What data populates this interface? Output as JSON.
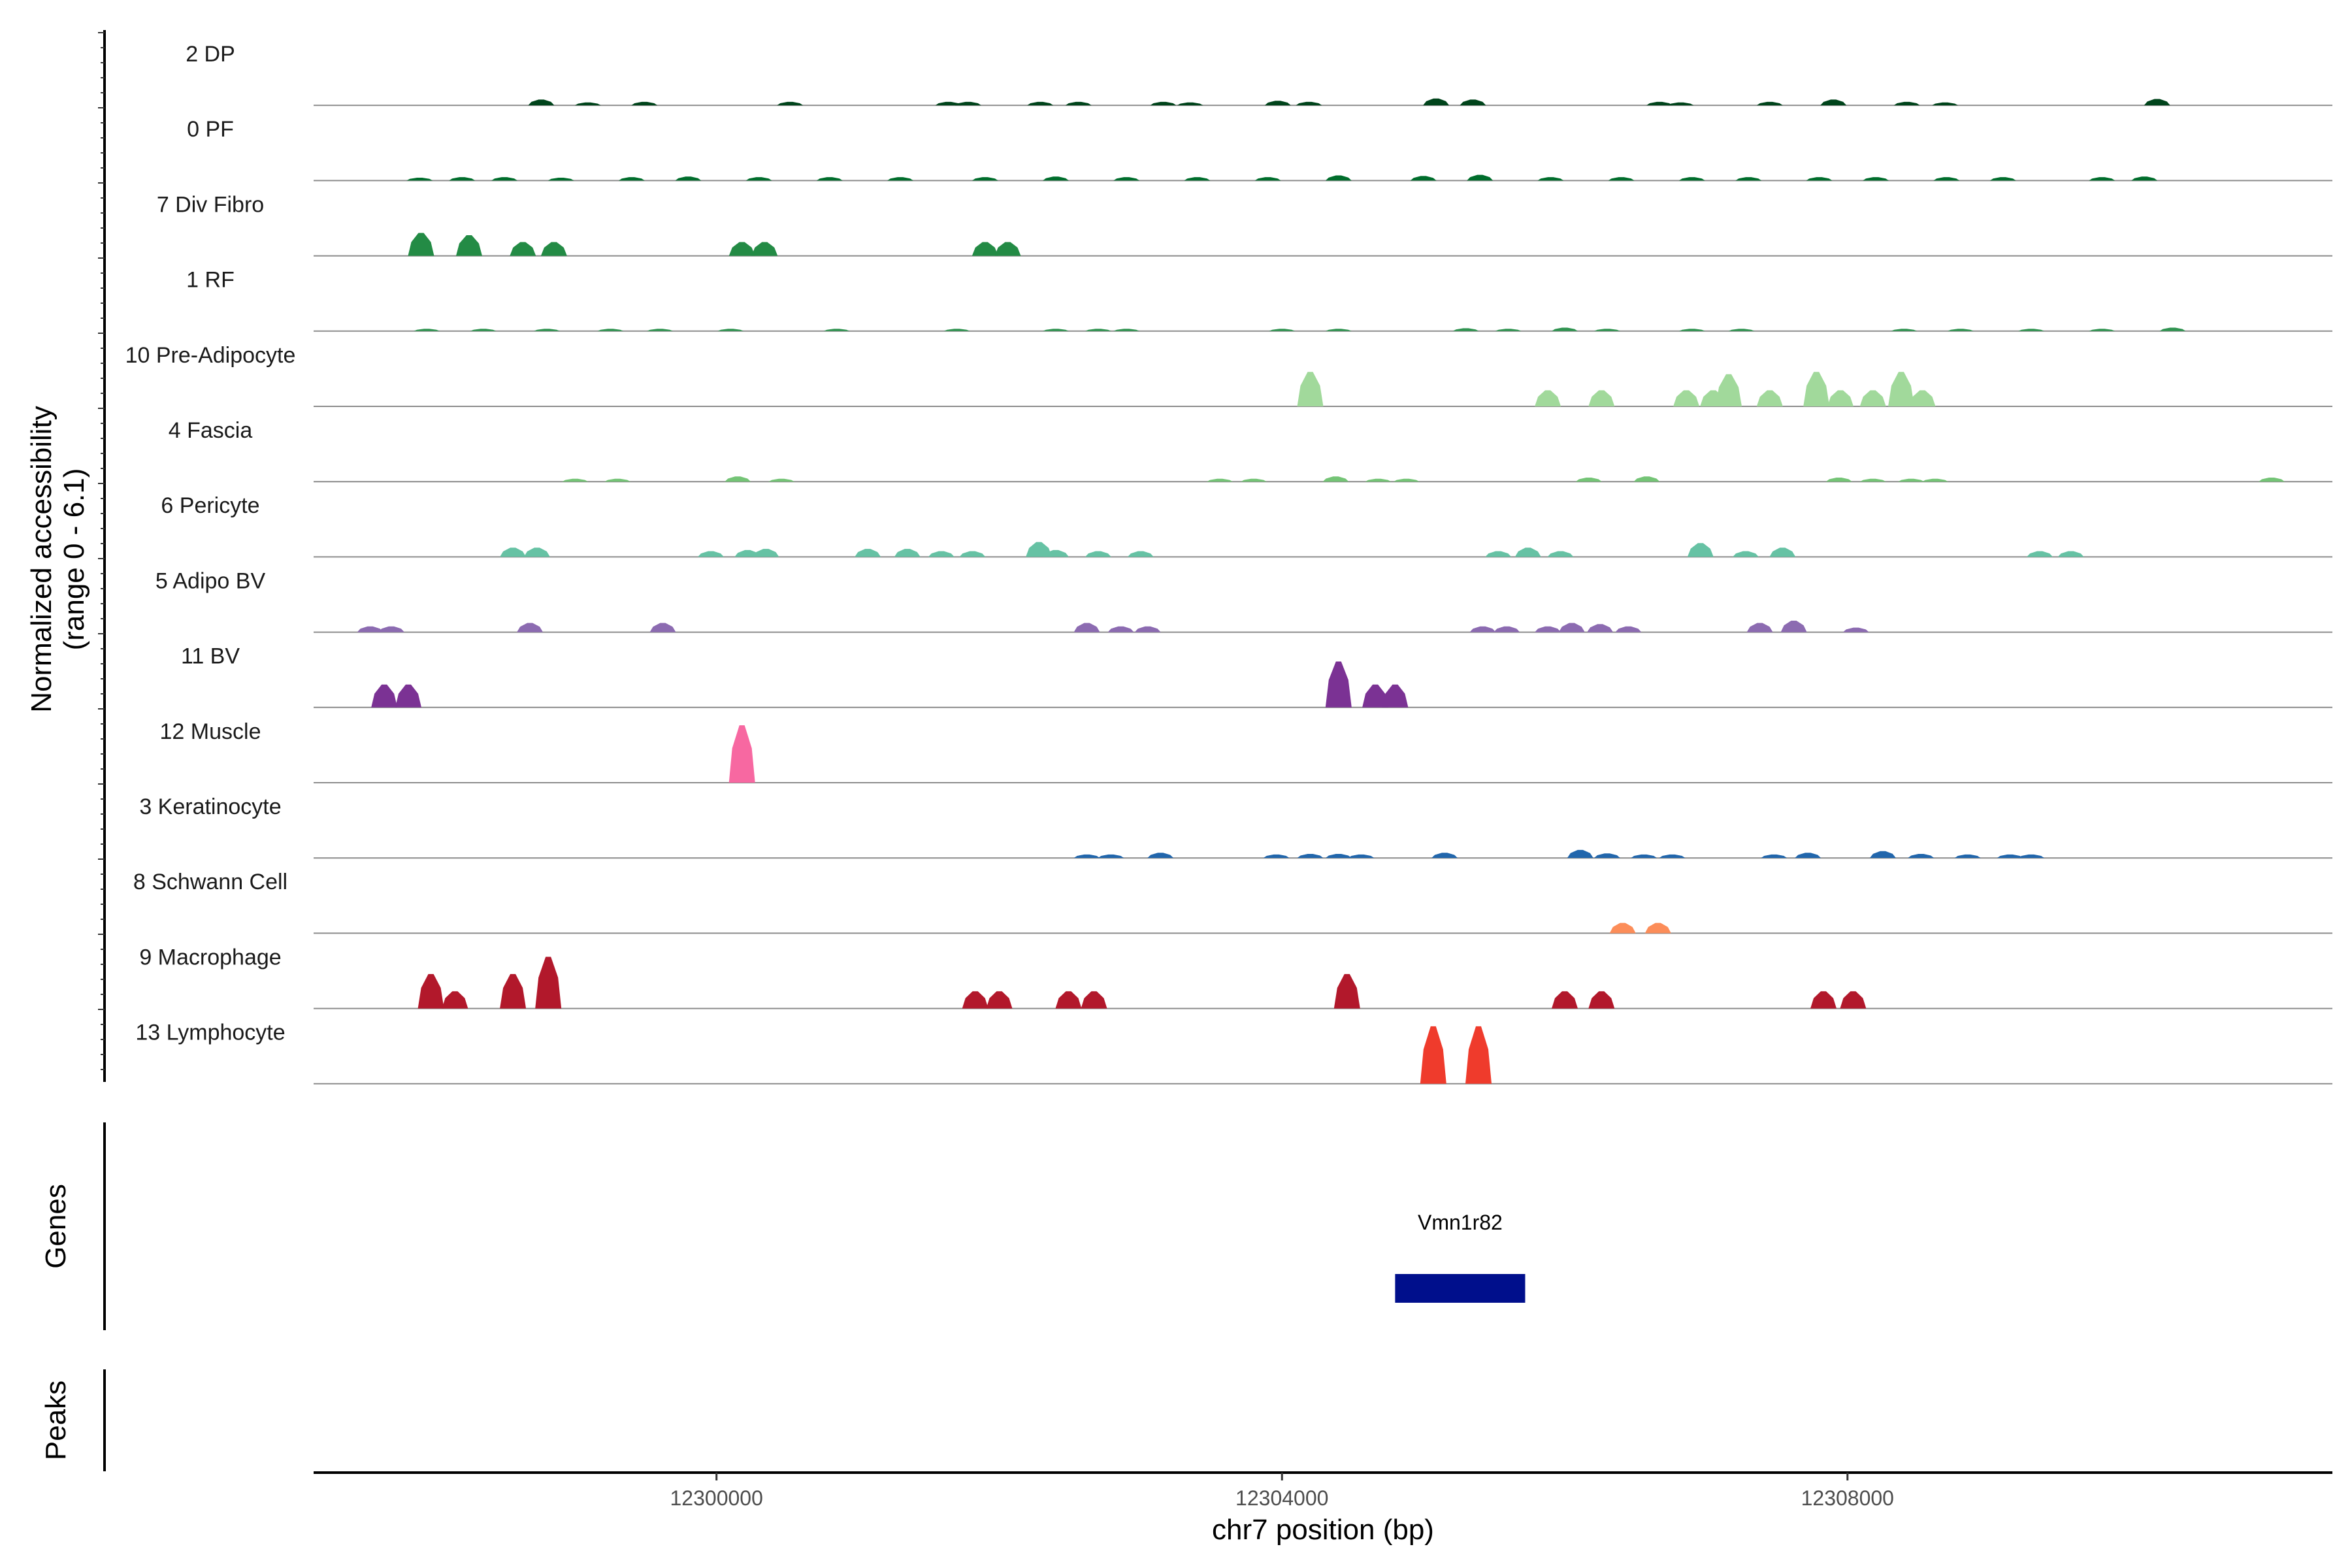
{
  "chart_data": {
    "type": "area",
    "xlabel": "chr7 position (bp)",
    "ylabel_line1": "Normalized accessibility",
    "ylabel_line2": "(range 0 - 6.1)",
    "xlim": [
      12297150,
      12311430
    ],
    "ylim": [
      0,
      6.1
    ],
    "x_ticks": [
      {
        "value": 12300000,
        "label": "12300000"
      },
      {
        "value": 12304000,
        "label": "12304000"
      },
      {
        "value": 12308000,
        "label": "12308000"
      }
    ],
    "tracks": [
      {
        "name": "2 DP",
        "color": "#00441b",
        "peaks": [
          [
            12298760,
            0.5
          ],
          [
            12299090,
            0.25
          ],
          [
            12299490,
            0.3
          ],
          [
            12300520,
            0.3
          ],
          [
            12301640,
            0.3
          ],
          [
            12301780,
            0.3
          ],
          [
            12302290,
            0.3
          ],
          [
            12302560,
            0.3
          ],
          [
            12303160,
            0.3
          ],
          [
            12303350,
            0.25
          ],
          [
            12303970,
            0.4
          ],
          [
            12304190,
            0.3
          ],
          [
            12305090,
            0.6
          ],
          [
            12305350,
            0.5
          ],
          [
            12306670,
            0.3
          ],
          [
            12306820,
            0.25
          ],
          [
            12307450,
            0.3
          ],
          [
            12307900,
            0.5
          ],
          [
            12308420,
            0.3
          ],
          [
            12308690,
            0.25
          ],
          [
            12310190,
            0.55
          ]
        ]
      },
      {
        "name": "0 PF",
        "color": "#006d2c",
        "peaks": [
          [
            12297900,
            0.25
          ],
          [
            12298200,
            0.3
          ],
          [
            12298500,
            0.3
          ],
          [
            12298900,
            0.25
          ],
          [
            12299400,
            0.3
          ],
          [
            12299800,
            0.35
          ],
          [
            12300300,
            0.3
          ],
          [
            12300800,
            0.3
          ],
          [
            12301300,
            0.3
          ],
          [
            12301900,
            0.3
          ],
          [
            12302400,
            0.35
          ],
          [
            12302900,
            0.3
          ],
          [
            12303400,
            0.3
          ],
          [
            12303900,
            0.3
          ],
          [
            12304400,
            0.45
          ],
          [
            12305000,
            0.4
          ],
          [
            12305400,
            0.5
          ],
          [
            12305900,
            0.3
          ],
          [
            12306400,
            0.3
          ],
          [
            12306900,
            0.3
          ],
          [
            12307300,
            0.3
          ],
          [
            12307800,
            0.3
          ],
          [
            12308200,
            0.3
          ],
          [
            12308700,
            0.3
          ],
          [
            12309100,
            0.3
          ],
          [
            12309800,
            0.3
          ],
          [
            12310100,
            0.35
          ]
        ]
      },
      {
        "name": "7 Div Fibro",
        "color": "#238b45",
        "peaks": [
          [
            12297910,
            2.0
          ],
          [
            12298250,
            1.8
          ],
          [
            12298630,
            1.2
          ],
          [
            12298850,
            1.2
          ],
          [
            12300180,
            1.2
          ],
          [
            12300340,
            1.2
          ],
          [
            12301900,
            1.2
          ],
          [
            12302060,
            1.2
          ]
        ]
      },
      {
        "name": "1 RF",
        "color": "#2f9350",
        "peaks": [
          [
            12297950,
            0.2
          ],
          [
            12298350,
            0.2
          ],
          [
            12298800,
            0.2
          ],
          [
            12299250,
            0.2
          ],
          [
            12299600,
            0.2
          ],
          [
            12300100,
            0.2
          ],
          [
            12300850,
            0.2
          ],
          [
            12301700,
            0.2
          ],
          [
            12302400,
            0.2
          ],
          [
            12302700,
            0.2
          ],
          [
            12302900,
            0.2
          ],
          [
            12304000,
            0.2
          ],
          [
            12304400,
            0.2
          ],
          [
            12305300,
            0.25
          ],
          [
            12305600,
            0.2
          ],
          [
            12306000,
            0.3
          ],
          [
            12306300,
            0.2
          ],
          [
            12306900,
            0.2
          ],
          [
            12307250,
            0.2
          ],
          [
            12308400,
            0.2
          ],
          [
            12308800,
            0.2
          ],
          [
            12309300,
            0.2
          ],
          [
            12309800,
            0.2
          ],
          [
            12310300,
            0.3
          ]
        ]
      },
      {
        "name": "10 Pre-Adipocyte",
        "color": "#a1d99b",
        "peaks": [
          [
            12304200,
            3.0
          ],
          [
            12305880,
            1.4
          ],
          [
            12306260,
            1.4
          ],
          [
            12306860,
            1.4
          ],
          [
            12307050,
            1.4
          ],
          [
            12307160,
            2.8
          ],
          [
            12307450,
            1.4
          ],
          [
            12307780,
            3.0
          ],
          [
            12307950,
            1.4
          ],
          [
            12308180,
            1.4
          ],
          [
            12308380,
            3.0
          ],
          [
            12308530,
            1.4
          ]
        ]
      },
      {
        "name": "4 Fascia",
        "color": "#74c476",
        "peaks": [
          [
            12299000,
            0.25
          ],
          [
            12299300,
            0.25
          ],
          [
            12300150,
            0.45
          ],
          [
            12300460,
            0.25
          ],
          [
            12303560,
            0.25
          ],
          [
            12303800,
            0.25
          ],
          [
            12304380,
            0.45
          ],
          [
            12304680,
            0.25
          ],
          [
            12304880,
            0.25
          ],
          [
            12306170,
            0.35
          ],
          [
            12306580,
            0.45
          ],
          [
            12307940,
            0.35
          ],
          [
            12308180,
            0.25
          ],
          [
            12308450,
            0.25
          ],
          [
            12308620,
            0.25
          ],
          [
            12311000,
            0.35
          ]
        ]
      },
      {
        "name": "6 Pericyte",
        "color": "#66c2a4",
        "peaks": [
          [
            12298560,
            0.8
          ],
          [
            12298730,
            0.8
          ],
          [
            12299960,
            0.5
          ],
          [
            12300220,
            0.6
          ],
          [
            12300350,
            0.7
          ],
          [
            12301070,
            0.7
          ],
          [
            12301350,
            0.7
          ],
          [
            12301590,
            0.5
          ],
          [
            12301810,
            0.5
          ],
          [
            12302280,
            1.3
          ],
          [
            12302400,
            0.6
          ],
          [
            12302700,
            0.5
          ],
          [
            12303000,
            0.5
          ],
          [
            12305530,
            0.5
          ],
          [
            12305740,
            0.8
          ],
          [
            12305970,
            0.5
          ],
          [
            12306960,
            1.2
          ],
          [
            12307280,
            0.5
          ],
          [
            12307540,
            0.8
          ],
          [
            12309360,
            0.5
          ],
          [
            12309580,
            0.5
          ]
        ]
      },
      {
        "name": "5 Adipo BV",
        "color": "#8c6bb1",
        "peaks": [
          [
            12297550,
            0.5
          ],
          [
            12297700,
            0.5
          ],
          [
            12298680,
            0.8
          ],
          [
            12299620,
            0.8
          ],
          [
            12302620,
            0.8
          ],
          [
            12302860,
            0.5
          ],
          [
            12303050,
            0.5
          ],
          [
            12305420,
            0.5
          ],
          [
            12305590,
            0.5
          ],
          [
            12305880,
            0.5
          ],
          [
            12306050,
            0.8
          ],
          [
            12306250,
            0.7
          ],
          [
            12306450,
            0.5
          ],
          [
            12307380,
            0.8
          ],
          [
            12307620,
            1.0
          ],
          [
            12308060,
            0.4
          ]
        ]
      },
      {
        "name": "11 BV",
        "color": "#7b3294",
        "peaks": [
          [
            12297650,
            2.0
          ],
          [
            12297820,
            2.0
          ],
          [
            12304400,
            4.0
          ],
          [
            12304660,
            2.0
          ],
          [
            12304800,
            2.0
          ]
        ]
      },
      {
        "name": "12 Muscle",
        "color": "#f768a1",
        "peaks": [
          [
            12300180,
            5.0
          ]
        ]
      },
      {
        "name": "3 Keratinocyte",
        "color": "#2166ac",
        "peaks": [
          [
            12302620,
            0.3
          ],
          [
            12302790,
            0.3
          ],
          [
            12303140,
            0.45
          ],
          [
            12303960,
            0.3
          ],
          [
            12304200,
            0.35
          ],
          [
            12304400,
            0.35
          ],
          [
            12304560,
            0.3
          ],
          [
            12305150,
            0.45
          ],
          [
            12306110,
            0.7
          ],
          [
            12306300,
            0.4
          ],
          [
            12306560,
            0.3
          ],
          [
            12306760,
            0.3
          ],
          [
            12307480,
            0.3
          ],
          [
            12307720,
            0.45
          ],
          [
            12308250,
            0.6
          ],
          [
            12308520,
            0.35
          ],
          [
            12308850,
            0.3
          ],
          [
            12309150,
            0.3
          ],
          [
            12309300,
            0.3
          ]
        ]
      },
      {
        "name": "8 Schwann Cell",
        "color": "#fc8d59",
        "peaks": [
          [
            12306410,
            0.9
          ],
          [
            12306660,
            0.9
          ]
        ]
      },
      {
        "name": "9 Macrophage",
        "color": "#b2182b",
        "peaks": [
          [
            12297980,
            3.0
          ],
          [
            12298150,
            1.5
          ],
          [
            12298560,
            3.0
          ],
          [
            12298810,
            4.5
          ],
          [
            12301830,
            1.5
          ],
          [
            12302000,
            1.5
          ],
          [
            12302490,
            1.5
          ],
          [
            12302670,
            1.5
          ],
          [
            12304460,
            3.0
          ],
          [
            12306000,
            1.5
          ],
          [
            12306260,
            1.5
          ],
          [
            12307830,
            1.5
          ],
          [
            12308040,
            1.5
          ]
        ]
      },
      {
        "name": "13 Lymphocyte",
        "color": "#ef3b2c",
        "peaks": [
          [
            12305070,
            5.0
          ],
          [
            12305390,
            5.0
          ]
        ]
      }
    ],
    "genes_panel_label": "Genes",
    "peaks_panel_label": "Peaks",
    "genes": [
      {
        "name": "Vmn1r82",
        "start": 12304800,
        "end": 12305720,
        "color": "#000f8c"
      }
    ]
  }
}
